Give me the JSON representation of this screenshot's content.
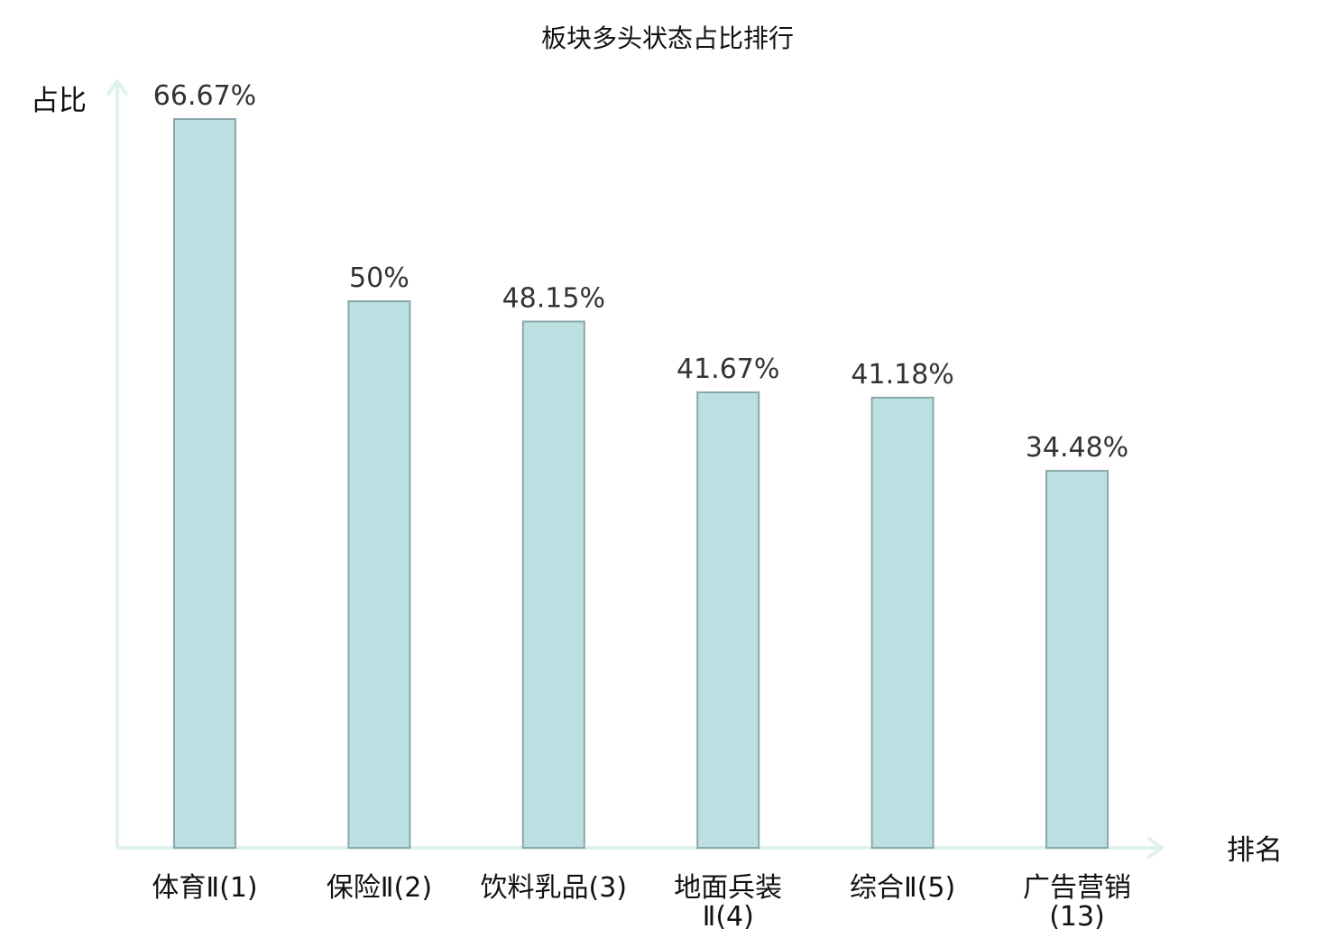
{
  "chart_data": {
    "type": "bar",
    "title": "板块多头状态占比排行",
    "ylabel": "占比",
    "xlabel": "排名",
    "categories": [
      "体育Ⅱ(1)",
      "保险Ⅱ(2)",
      "饮料乳品(3)",
      "地面兵装Ⅱ(4)",
      "综合Ⅱ(5)",
      "广告营销(13)"
    ],
    "values": [
      66.67,
      50,
      48.15,
      41.67,
      41.18,
      34.48
    ],
    "value_labels": [
      "66.67%",
      "50%",
      "48.15%",
      "41.67%",
      "41.18%",
      "34.48%"
    ],
    "highlight_index": 5,
    "ylim": [
      0,
      70
    ],
    "grid": false,
    "legend": "none"
  },
  "colors": {
    "bar_fill": "#bce0e2",
    "bar_stroke": "#8aa8aa",
    "axis": "#dff1ef",
    "text": "#111111",
    "value_text": "#333333",
    "highlight": "#e8161b"
  }
}
